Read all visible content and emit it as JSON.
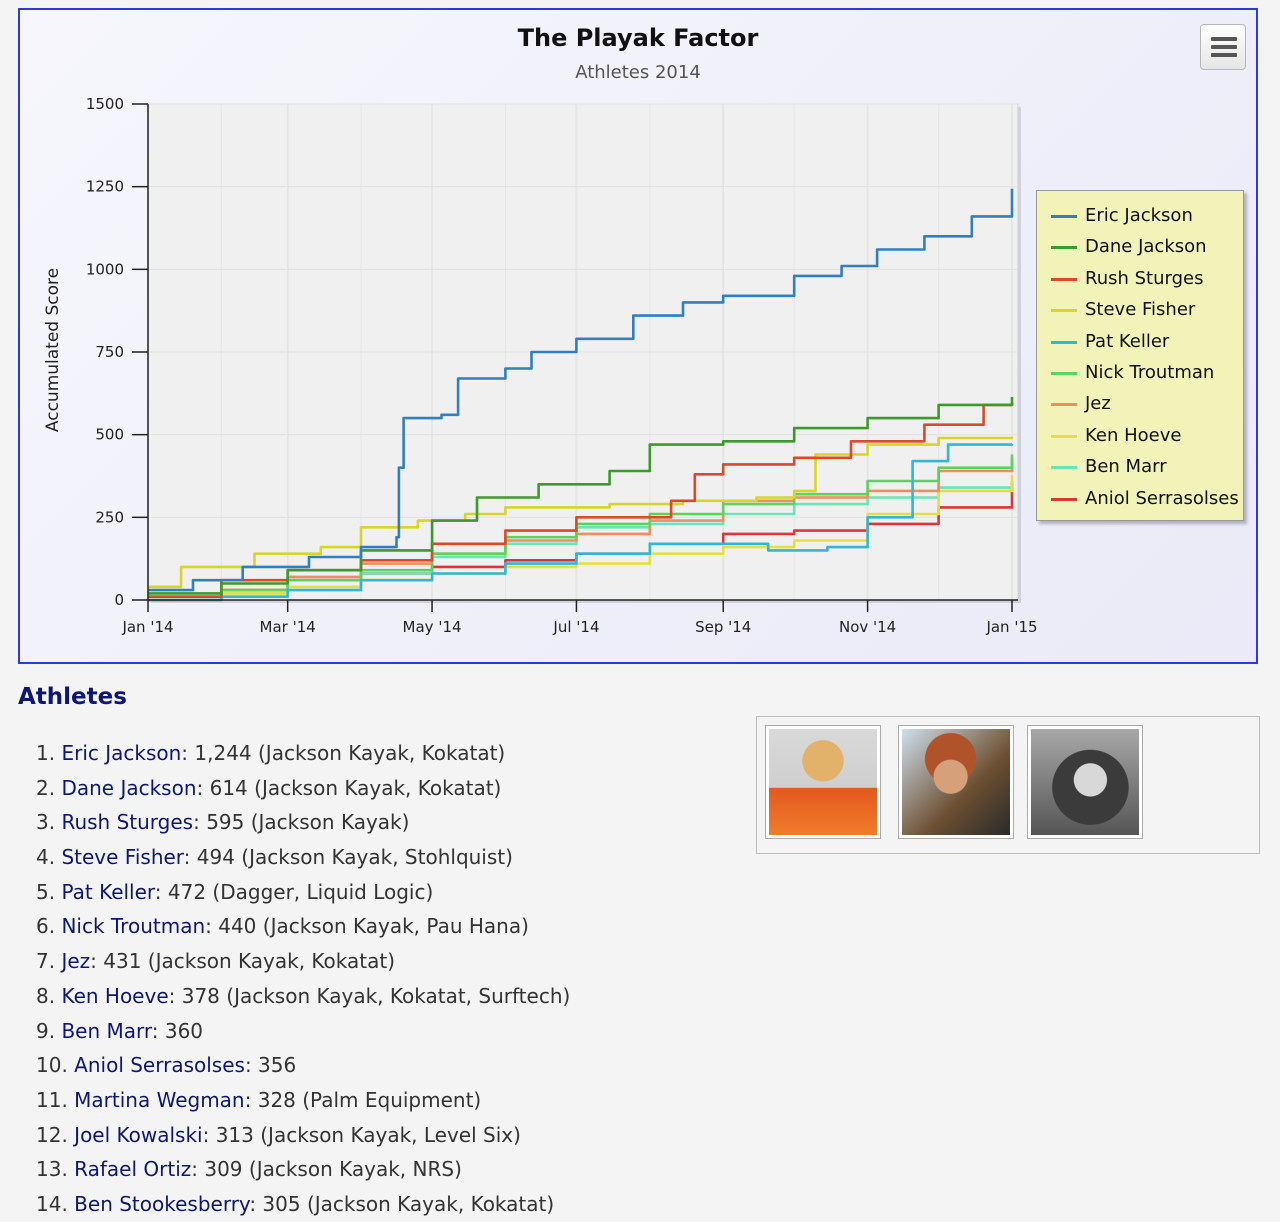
{
  "chart": {
    "title": "The Playak Factor",
    "subtitle": "Athletes 2014",
    "menu_icon": "hamburger-menu-icon"
  },
  "chart_data": {
    "type": "line",
    "title": "The Playak Factor",
    "subtitle": "Athletes 2014",
    "xlabel": "",
    "ylabel": "Accumulated Score",
    "xlim": [
      "2014-01-01",
      "2015-01-01"
    ],
    "ylim": [
      0,
      1500
    ],
    "x_ticks": [
      "Jan '14",
      "Mar '14",
      "May '14",
      "Jul '14",
      "Sep '14",
      "Nov '14",
      "Jan '15"
    ],
    "y_ticks": [
      "0",
      "250",
      "500",
      "750",
      "1000",
      "1250",
      "1500"
    ],
    "grid": true,
    "legend_position": "right",
    "series": [
      {
        "name": "Eric Jackson",
        "color": "#2f7fc1",
        "points": [
          [
            "2014-01-01",
            30
          ],
          [
            "2014-01-20",
            60
          ],
          [
            "2014-02-10",
            100
          ],
          [
            "2014-03-10",
            130
          ],
          [
            "2014-04-01",
            160
          ],
          [
            "2014-04-16",
            190
          ],
          [
            "2014-04-17",
            400
          ],
          [
            "2014-04-19",
            550
          ],
          [
            "2014-05-05",
            560
          ],
          [
            "2014-05-12",
            670
          ],
          [
            "2014-06-01",
            700
          ],
          [
            "2014-06-12",
            750
          ],
          [
            "2014-07-01",
            790
          ],
          [
            "2014-07-25",
            860
          ],
          [
            "2014-08-15",
            900
          ],
          [
            "2014-09-01",
            920
          ],
          [
            "2014-10-01",
            980
          ],
          [
            "2014-10-21",
            1010
          ],
          [
            "2014-11-05",
            1060
          ],
          [
            "2014-11-25",
            1100
          ],
          [
            "2014-12-15",
            1160
          ],
          [
            "2015-01-01",
            1244
          ]
        ]
      },
      {
        "name": "Dane Jackson",
        "color": "#3a9a2a",
        "points": [
          [
            "2014-01-01",
            20
          ],
          [
            "2014-02-01",
            50
          ],
          [
            "2014-03-01",
            90
          ],
          [
            "2014-04-01",
            150
          ],
          [
            "2014-05-01",
            240
          ],
          [
            "2014-05-20",
            310
          ],
          [
            "2014-06-15",
            350
          ],
          [
            "2014-07-15",
            390
          ],
          [
            "2014-08-01",
            470
          ],
          [
            "2014-09-01",
            480
          ],
          [
            "2014-10-01",
            520
          ],
          [
            "2014-11-01",
            550
          ],
          [
            "2014-12-01",
            590
          ],
          [
            "2015-01-01",
            614
          ]
        ]
      },
      {
        "name": "Rush Sturges",
        "color": "#d94a25",
        "points": [
          [
            "2014-01-01",
            10
          ],
          [
            "2014-02-01",
            60
          ],
          [
            "2014-03-01",
            90
          ],
          [
            "2014-04-01",
            120
          ],
          [
            "2014-05-01",
            170
          ],
          [
            "2014-06-01",
            210
          ],
          [
            "2014-07-01",
            250
          ],
          [
            "2014-08-10",
            300
          ],
          [
            "2014-08-20",
            380
          ],
          [
            "2014-09-01",
            410
          ],
          [
            "2014-10-01",
            430
          ],
          [
            "2014-10-25",
            480
          ],
          [
            "2014-11-25",
            530
          ],
          [
            "2014-12-20",
            590
          ],
          [
            "2015-01-01",
            595
          ]
        ]
      },
      {
        "name": "Steve Fisher",
        "color": "#d8d42a",
        "points": [
          [
            "2014-01-01",
            40
          ],
          [
            "2014-01-15",
            100
          ],
          [
            "2014-02-15",
            140
          ],
          [
            "2014-03-15",
            160
          ],
          [
            "2014-04-01",
            220
          ],
          [
            "2014-04-25",
            240
          ],
          [
            "2014-05-15",
            260
          ],
          [
            "2014-06-01",
            280
          ],
          [
            "2014-07-15",
            290
          ],
          [
            "2014-08-15",
            300
          ],
          [
            "2014-09-15",
            310
          ],
          [
            "2014-10-01",
            330
          ],
          [
            "2014-10-10",
            440
          ],
          [
            "2014-11-01",
            470
          ],
          [
            "2014-12-01",
            490
          ],
          [
            "2015-01-01",
            494
          ]
        ]
      },
      {
        "name": "Pat Keller",
        "color": "#33b6d4",
        "points": [
          [
            "2014-01-01",
            0
          ],
          [
            "2014-02-01",
            10
          ],
          [
            "2014-03-01",
            30
          ],
          [
            "2014-04-01",
            60
          ],
          [
            "2014-05-01",
            80
          ],
          [
            "2014-06-01",
            110
          ],
          [
            "2014-07-01",
            140
          ],
          [
            "2014-08-01",
            170
          ],
          [
            "2014-09-01",
            170
          ],
          [
            "2014-09-20",
            150
          ],
          [
            "2014-10-15",
            160
          ],
          [
            "2014-11-01",
            250
          ],
          [
            "2014-11-20",
            420
          ],
          [
            "2014-12-05",
            470
          ],
          [
            "2015-01-01",
            472
          ]
        ]
      },
      {
        "name": "Nick Troutman",
        "color": "#5bd45b",
        "points": [
          [
            "2014-01-01",
            0
          ],
          [
            "2014-02-01",
            30
          ],
          [
            "2014-03-01",
            60
          ],
          [
            "2014-04-01",
            90
          ],
          [
            "2014-05-01",
            140
          ],
          [
            "2014-06-01",
            190
          ],
          [
            "2014-07-01",
            230
          ],
          [
            "2014-08-01",
            260
          ],
          [
            "2014-09-01",
            290
          ],
          [
            "2014-10-01",
            320
          ],
          [
            "2014-11-01",
            360
          ],
          [
            "2014-12-01",
            400
          ],
          [
            "2015-01-01",
            440
          ]
        ]
      },
      {
        "name": "Jez",
        "color": "#f08d5e",
        "points": [
          [
            "2014-01-01",
            0
          ],
          [
            "2014-02-01",
            30
          ],
          [
            "2014-03-01",
            70
          ],
          [
            "2014-04-01",
            110
          ],
          [
            "2014-05-01",
            140
          ],
          [
            "2014-06-01",
            180
          ],
          [
            "2014-07-01",
            200
          ],
          [
            "2014-08-01",
            240
          ],
          [
            "2014-09-01",
            300
          ],
          [
            "2014-10-01",
            310
          ],
          [
            "2014-11-01",
            330
          ],
          [
            "2014-12-01",
            390
          ],
          [
            "2015-01-01",
            431
          ]
        ]
      },
      {
        "name": "Ken Hoeve",
        "color": "#e6df44",
        "points": [
          [
            "2014-01-01",
            0
          ],
          [
            "2014-02-01",
            20
          ],
          [
            "2014-03-01",
            40
          ],
          [
            "2014-04-01",
            60
          ],
          [
            "2014-05-01",
            80
          ],
          [
            "2014-06-01",
            100
          ],
          [
            "2014-07-01",
            110
          ],
          [
            "2014-08-01",
            140
          ],
          [
            "2014-09-01",
            160
          ],
          [
            "2014-10-01",
            180
          ],
          [
            "2014-11-01",
            260
          ],
          [
            "2014-12-01",
            330
          ],
          [
            "2015-01-01",
            378
          ]
        ]
      },
      {
        "name": "Ben Marr",
        "color": "#6fe3b8",
        "points": [
          [
            "2014-01-01",
            0
          ],
          [
            "2014-02-01",
            20
          ],
          [
            "2014-03-01",
            40
          ],
          [
            "2014-04-01",
            80
          ],
          [
            "2014-05-01",
            130
          ],
          [
            "2014-06-01",
            170
          ],
          [
            "2014-07-01",
            220
          ],
          [
            "2014-08-01",
            230
          ],
          [
            "2014-09-01",
            260
          ],
          [
            "2014-10-01",
            290
          ],
          [
            "2014-11-01",
            310
          ],
          [
            "2014-12-01",
            340
          ],
          [
            "2015-01-01",
            360
          ]
        ]
      },
      {
        "name": "Aniol Serrasolses",
        "color": "#d93838",
        "points": [
          [
            "2014-01-01",
            10
          ],
          [
            "2014-02-01",
            30
          ],
          [
            "2014-03-01",
            60
          ],
          [
            "2014-04-01",
            80
          ],
          [
            "2014-05-01",
            100
          ],
          [
            "2014-06-01",
            120
          ],
          [
            "2014-07-01",
            140
          ],
          [
            "2014-08-01",
            170
          ],
          [
            "2014-09-01",
            200
          ],
          [
            "2014-10-01",
            210
          ],
          [
            "2014-11-01",
            230
          ],
          [
            "2014-12-01",
            280
          ],
          [
            "2015-01-01",
            356
          ]
        ]
      }
    ]
  },
  "athletes": {
    "heading": "Athletes",
    "list": [
      {
        "rank": "1. ",
        "name": "Eric Jackson",
        "detail": ": 1,244 (Jackson Kayak, Kokatat)"
      },
      {
        "rank": "2. ",
        "name": "Dane Jackson",
        "detail": ": 614 (Jackson Kayak, Kokatat)"
      },
      {
        "rank": "3. ",
        "name": "Rush Sturges",
        "detail": ": 595 (Jackson Kayak)"
      },
      {
        "rank": "4. ",
        "name": "Steve Fisher",
        "detail": ": 494 (Jackson Kayak, Stohlquist)"
      },
      {
        "rank": "5. ",
        "name": "Pat Keller",
        "detail": ": 472 (Dagger, Liquid Logic)"
      },
      {
        "rank": "6. ",
        "name": "Nick Troutman",
        "detail": ": 440 (Jackson Kayak, Pau Hana)"
      },
      {
        "rank": "7. ",
        "name": "Jez",
        "detail": ": 431 (Jackson Kayak, Kokatat)"
      },
      {
        "rank": "8. ",
        "name": "Ken Hoeve",
        "detail": ": 378 (Jackson Kayak, Kokatat, Surftech)"
      },
      {
        "rank": "9. ",
        "name": "Ben Marr",
        "detail": ": 360"
      },
      {
        "rank": "10. ",
        "name": "Aniol Serrasolses",
        "detail": ": 356"
      },
      {
        "rank": "11. ",
        "name": "Martina Wegman",
        "detail": ": 328 (Palm Equipment)"
      },
      {
        "rank": "12. ",
        "name": "Joel Kowalski",
        "detail": ": 313 (Jackson Kayak, Level Six)"
      },
      {
        "rank": "13. ",
        "name": "Rafael Ortiz",
        "detail": ": 309 (Jackson Kayak, NRS)"
      },
      {
        "rank": "14. ",
        "name": "Ben Stookesberry",
        "detail": ": 305 (Jackson Kayak, Kokatat)"
      }
    ]
  },
  "photos": [
    {
      "icon": "athlete-photo-helmet",
      "bg": "#e8b060"
    },
    {
      "icon": "athlete-photo-curly-hair",
      "bg": "#7a5a3a"
    },
    {
      "icon": "athlete-photo-hood",
      "bg": "#7f7f7f"
    }
  ]
}
